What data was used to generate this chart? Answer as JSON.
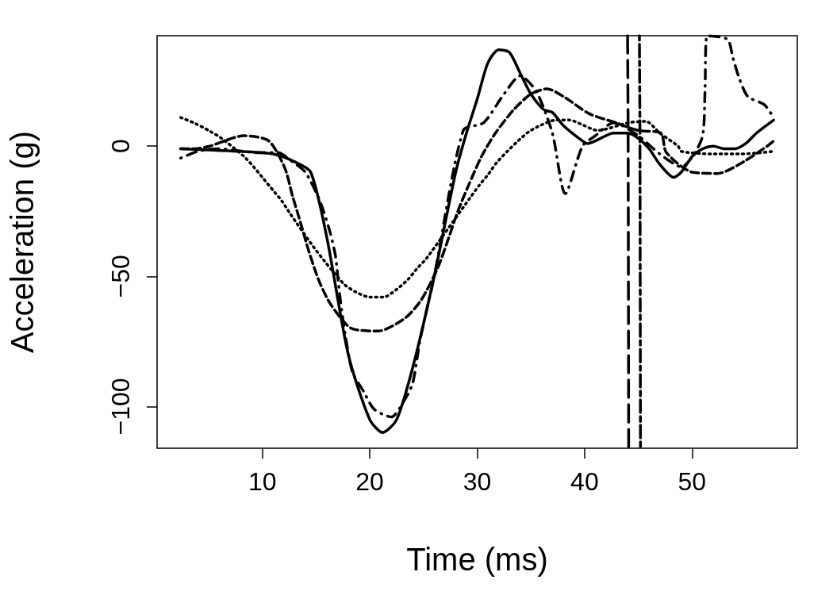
{
  "chart_data": {
    "type": "line",
    "xlabel": "Time (ms)",
    "ylabel": "Acceleration (g)",
    "xlim": [
      0.2,
      59.8
    ],
    "ylim": [
      -116,
      42.4
    ],
    "xticks": [
      10,
      20,
      30,
      40,
      50
    ],
    "yticks": [
      -100,
      -50,
      0
    ],
    "grid": false,
    "marker": "none",
    "series": [
      {
        "color": "#000000",
        "line_style": "solid",
        "x": [
          2.4,
          5,
          8,
          11,
          13,
          14.5,
          16,
          18,
          20,
          21.2,
          22.5,
          24,
          26,
          28,
          29,
          30,
          31,
          32,
          33,
          34,
          35,
          36.2,
          37,
          38,
          39.8,
          40.3,
          41,
          42.7,
          44,
          45,
          46,
          47,
          48.3,
          49,
          50,
          51,
          52,
          53,
          54,
          55,
          56,
          57.6
        ],
        "values": [
          -1,
          -1.5,
          -2,
          -3,
          -6,
          -10,
          -35,
          -80,
          -105,
          -110,
          -105,
          -85,
          -50,
          -10,
          5,
          18,
          32,
          37,
          36,
          28,
          20,
          14,
          13,
          8,
          2,
          1,
          2,
          5,
          5,
          3,
          -1,
          -7,
          -12,
          -10,
          -4,
          -1,
          0,
          -1,
          -1,
          1,
          5,
          10
        ]
      },
      {
        "color": "#000000",
        "line_style": "dashed",
        "x": [
          2.4,
          3.7,
          5.1,
          8.3,
          10.6,
          12.1,
          12.8,
          13.6,
          14.3,
          15.3,
          16.4,
          18.3,
          20.8,
          23.3,
          24.8,
          26.3,
          27.2,
          28.2,
          29.2,
          30.4,
          31.7,
          33.4,
          35,
          36.5,
          38.2,
          40.4,
          42.9,
          45,
          47.1,
          47.6,
          50,
          52.4,
          54.8,
          57.1,
          57.6
        ],
        "values": [
          -1,
          -1,
          0,
          4,
          2,
          -8.5,
          -19,
          -30,
          -40,
          -52,
          -61,
          -70,
          -71,
          -66,
          -59,
          -47,
          -37,
          -25,
          -15,
          -4,
          5,
          14,
          20,
          22,
          18.6,
          12.5,
          9,
          6,
          5,
          -2.4,
          -10,
          -10.5,
          -6,
          0.3,
          2
        ]
      },
      {
        "color": "#000000",
        "line_style": "dotted",
        "x": [
          2.4,
          3.8,
          5,
          6.2,
          8.3,
          9.2,
          10.1,
          11,
          11.8,
          12.6,
          15,
          17.6,
          18.7,
          20,
          21.3,
          22.5,
          23.6,
          24.4,
          25.3,
          29.4,
          30.2,
          31,
          31.8,
          32.8,
          33.8,
          34.8,
          35.9,
          37.3,
          38.6,
          39.9,
          41.2,
          44.1,
          45.7,
          47,
          48.7,
          49,
          51.8,
          53.1,
          54.5,
          55.9,
          57.6
        ],
        "values": [
          11,
          8.6,
          6,
          3,
          -4,
          -8,
          -12.5,
          -17,
          -21,
          -26,
          -40,
          -53,
          -56,
          -58,
          -58,
          -55,
          -51,
          -47,
          -43,
          -19.5,
          -15,
          -11,
          -6.4,
          -2,
          2,
          5.5,
          8,
          10,
          10,
          8,
          6,
          9,
          9.5,
          5,
          0,
          -2,
          -3,
          -3,
          -3,
          -2.7,
          -2
        ]
      },
      {
        "color": "#000000",
        "line_style": "dashdot",
        "x": [
          2.4,
          4,
          5.9,
          9.6,
          11.4,
          12.8,
          14,
          15.1,
          15.7,
          16.3,
          16.8,
          17.2,
          17.7,
          18.4,
          19.4,
          20.4,
          22,
          23.3,
          24,
          24.7,
          26,
          28.7,
          30.6,
          32.5,
          34,
          35.5,
          37,
          38.2,
          39.8,
          41,
          42.7,
          44.9,
          47,
          49,
          50.9,
          51.2,
          51.4,
          53.3,
          53.8,
          54.4,
          55.2,
          56.7,
          57.6
        ],
        "values": [
          -4.6,
          -2,
          -1,
          -2.5,
          -2.4,
          -6,
          -10,
          -18.6,
          -25,
          -33,
          -42,
          -57,
          -72,
          -87,
          -94,
          -101,
          -104,
          -97,
          -91,
          -74,
          -50,
          6,
          9,
          20,
          27,
          21,
          5,
          -18.3,
          0,
          4,
          9,
          4.3,
          -3,
          -8,
          2.7,
          20,
          42.4,
          41,
          34,
          26,
          19,
          16,
          11
        ]
      },
      {
        "color": "#000000",
        "line_style": "longdash",
        "x": [
          44.0,
          44.05,
          44.1
        ],
        "values": [
          42.4,
          5,
          -116
        ]
      },
      {
        "color": "#000000",
        "line_style": "twodash",
        "x": [
          45.1,
          45.15,
          45.2
        ],
        "values": [
          42.4,
          5,
          -116
        ]
      }
    ]
  }
}
